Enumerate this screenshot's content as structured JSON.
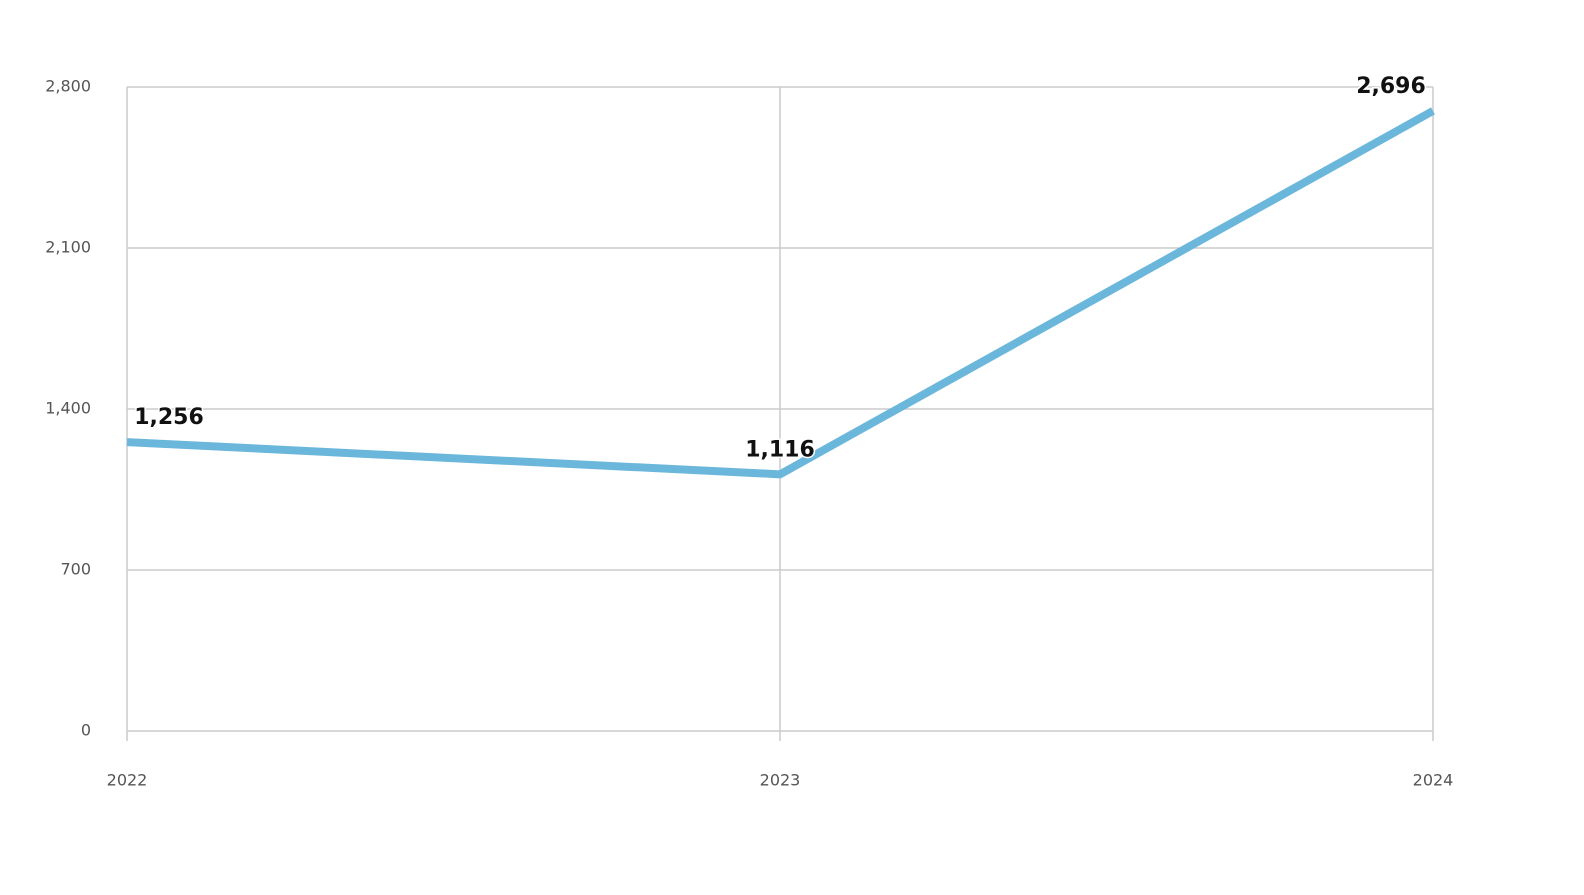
{
  "chart_data": {
    "type": "line",
    "categories": [
      "2022",
      "2023",
      "2024"
    ],
    "values": [
      1256,
      1116,
      2696
    ],
    "value_labels": [
      "1,256",
      "1,116",
      "2,696"
    ],
    "color": "#6bb7db",
    "ylim": [
      0,
      2800
    ],
    "yticks": [
      0,
      700,
      {
        "value": 1400,
        "label": "1,400"
      },
      {
        "value": 2100,
        "label": "2,100"
      },
      {
        "value": 2800,
        "label": "2,800"
      }
    ],
    "grid": true
  }
}
